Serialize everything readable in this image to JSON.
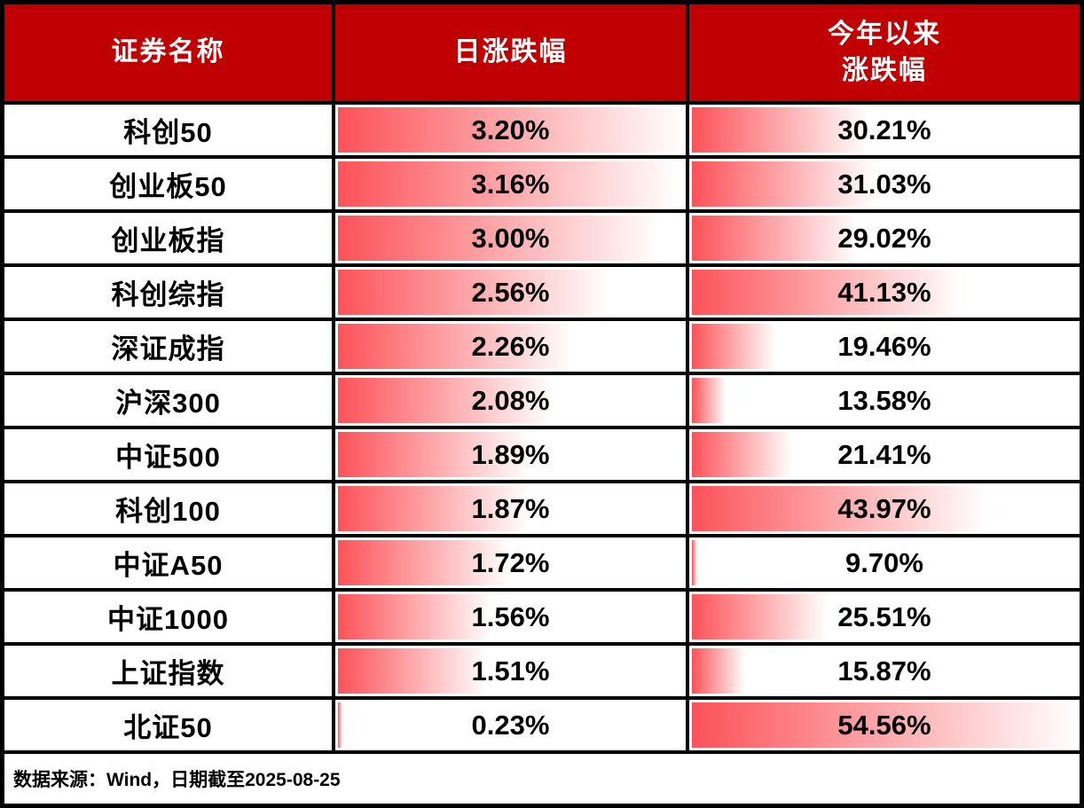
{
  "header": {
    "col_name": "证券名称",
    "col_daily": "日涨跌幅",
    "col_ytd_line1": "今年以来",
    "col_ytd_line2": "涨跌幅"
  },
  "chart_data": {
    "type": "table",
    "categories": [
      "科创50",
      "创业板50",
      "创业板指",
      "科创综指",
      "深证成指",
      "沪深300",
      "中证500",
      "科创100",
      "中证A50",
      "中证1000",
      "上证指数",
      "北证50"
    ],
    "series": [
      {
        "name": "日涨跌幅",
        "values": [
          3.2,
          3.16,
          3.0,
          2.56,
          2.26,
          2.08,
          1.89,
          1.87,
          1.72,
          1.56,
          1.51,
          0.23
        ],
        "display": [
          "3.20%",
          "3.16%",
          "3.00%",
          "2.56%",
          "2.26%",
          "2.08%",
          "1.89%",
          "1.87%",
          "1.72%",
          "1.56%",
          "1.51%",
          "0.23%"
        ]
      },
      {
        "name": "今年以来涨跌幅",
        "values": [
          30.21,
          31.03,
          29.02,
          41.13,
          19.46,
          13.58,
          21.41,
          43.97,
          9.7,
          25.51,
          15.87,
          54.56
        ],
        "display": [
          "30.21%",
          "31.03%",
          "29.02%",
          "41.13%",
          "19.46%",
          "13.58%",
          "21.41%",
          "43.97%",
          "9.70%",
          "25.51%",
          "15.87%",
          "54.56%"
        ]
      }
    ],
    "layout": {
      "bar_scaling": "min-to-max-per-column",
      "bar_direction": "left-to-right",
      "grid": "black-4px"
    }
  },
  "footer": {
    "source_note": "数据来源：Wind，日期截至2025-08-25"
  },
  "colors": {
    "header_bg": "#c00000",
    "header_text": "#ffffff",
    "bar_start": "#fb5258",
    "bar_end": "#ffffff",
    "border": "#000000",
    "row_bg": "#ffffff",
    "value_text": "#000000"
  }
}
